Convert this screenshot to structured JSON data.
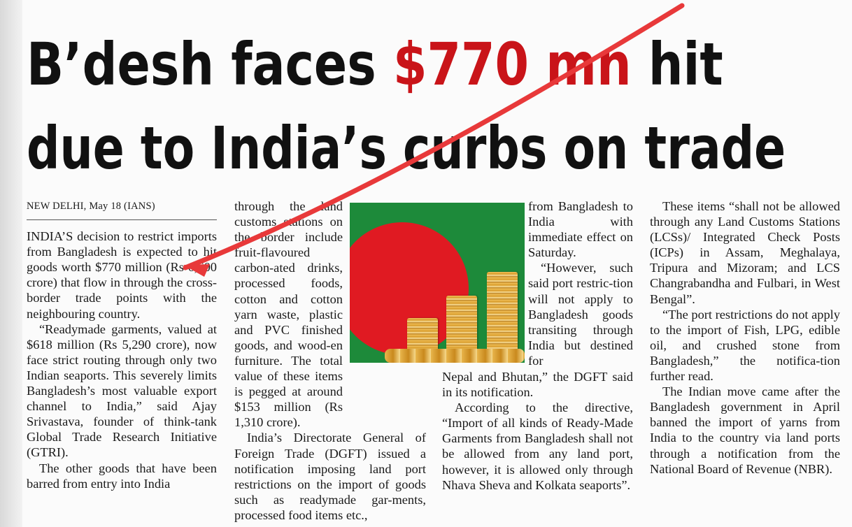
{
  "headline": {
    "line1_before": "B’desh faces ",
    "line1_highlight": "$770 mn",
    "line1_after": " hit",
    "line2": "due to India’s curbs on trade"
  },
  "dateline": "NEW DELHI, May 18 (IANS)",
  "colors": {
    "highlight": "#c91419",
    "strike": "#e8393a",
    "flag_green": "#1d8a3a",
    "flag_red": "#e01a22"
  },
  "column1": [
    "INDIA’S decision to restrict imports from Bangladesh is expected to hit goods worth $770 million (Rs 6,600 crore) that flow in through the cross-border trade points with the neighbouring country.",
    "“Readymade garments, valued at $618 million (Rs 5,290 crore), now face strict routing through only two Indian seaports. This severely limits Bangladesh’s most valuable export channel to India,” said Ajay Srivastava, founder of think-tank Global Trade Research Initiative (GTRI).",
    "The other goods that have been barred from entry into India"
  ],
  "column2": [
    "through the land customs stations on the border include fruit-flavoured carbon-ated drinks, processed foods, cotton and cotton yarn waste, plastic and PVC finished goods, and wood-en furniture. The total value of these items is pegged at around $153 million (Rs 1,310 crore).",
    "India’s Directorate General of Foreign Trade (DGFT) issued a notification imposing land port restrictions on the import of goods such as readymade gar-ments, processed food items etc.,"
  ],
  "column3_top": [
    "from Bangladesh to India with immediate effect on Saturday.",
    "“However, such said port restric-tion will not apply to Bangladesh goods transiting through India but destined for"
  ],
  "column3_bottom": [
    "Nepal and Bhutan,” the DGFT said in its notification.",
    "According to the directive, “Import of all kinds of Ready-Made Garments from Bangladesh shall not be allowed from any land port, however, it is allowed only through Nhava Sheva and Kolkata seaports”."
  ],
  "column4": [
    "These items “shall not be allowed through any Land Customs Stations (LCSs)/ Integrated Check Posts (ICPs) in Assam, Meghalaya, Tripura and Mizoram; and LCS Changrabandha and Fulbari, in West Bengal”.",
    "“The port restrictions do not apply to the import of Fish, LPG, edible oil, and crushed stone from Bangladesh,” the notifica-tion further read.",
    "The Indian move came after the Bangladesh government in April banned the import of yarns from India to the country via land ports through a notification from the National Board of Revenue (NBR)."
  ]
}
